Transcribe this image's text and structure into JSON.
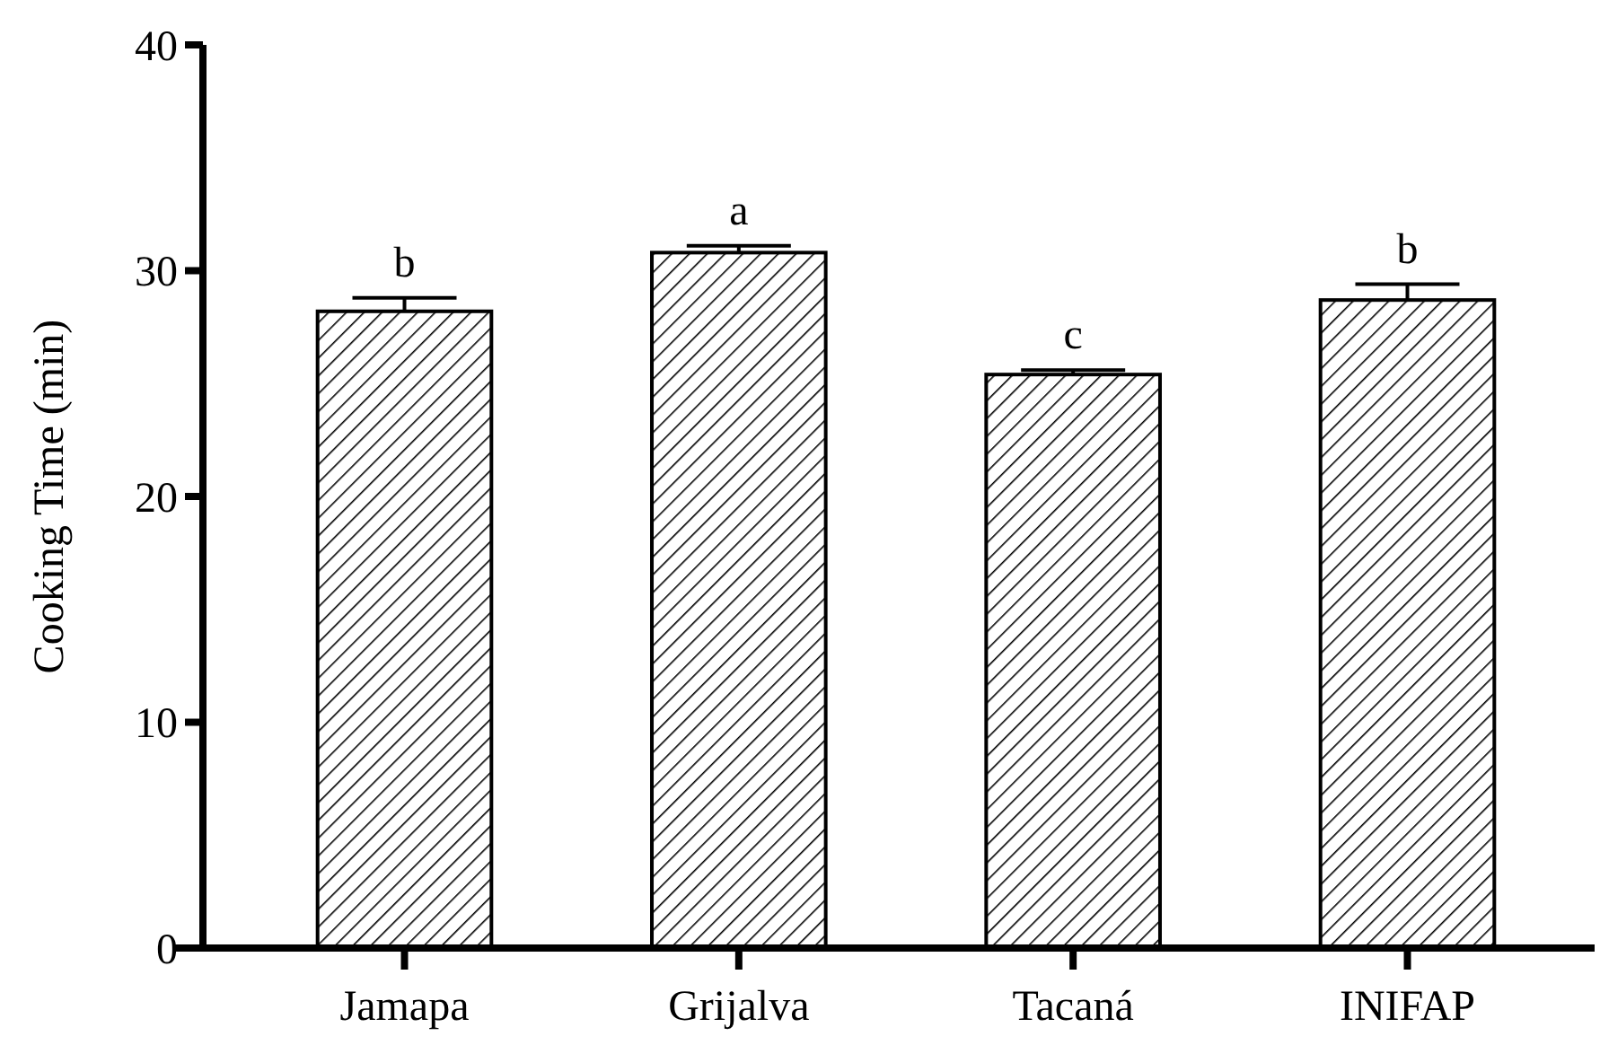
{
  "chart_data": {
    "type": "bar",
    "ylabel": "Cooking Time (min)",
    "categories": [
      "Jamapa",
      "Grijalva",
      "Tacaná",
      "INIFAP"
    ],
    "values": [
      28.2,
      30.8,
      25.4,
      28.7
    ],
    "errors": [
      [
        28.2,
        28.8
      ],
      [
        30.8,
        31.1
      ],
      [
        25.4,
        25.6
      ],
      [
        28.7,
        29.4
      ]
    ],
    "color": "#000000",
    "ylim": [
      0,
      40
    ],
    "yticks": [
      0,
      10,
      20,
      30,
      40
    ],
    "grid": false,
    "annotations": [
      {
        "text": "b",
        "x": "Jamapa",
        "y": 28.2
      },
      {
        "text": "a",
        "x": "Grijalva",
        "y": 30.8
      },
      {
        "text": "c",
        "x": "Tacaná",
        "y": 25.4
      },
      {
        "text": "b",
        "x": "INIFAP",
        "y": 28.7
      }
    ]
  }
}
